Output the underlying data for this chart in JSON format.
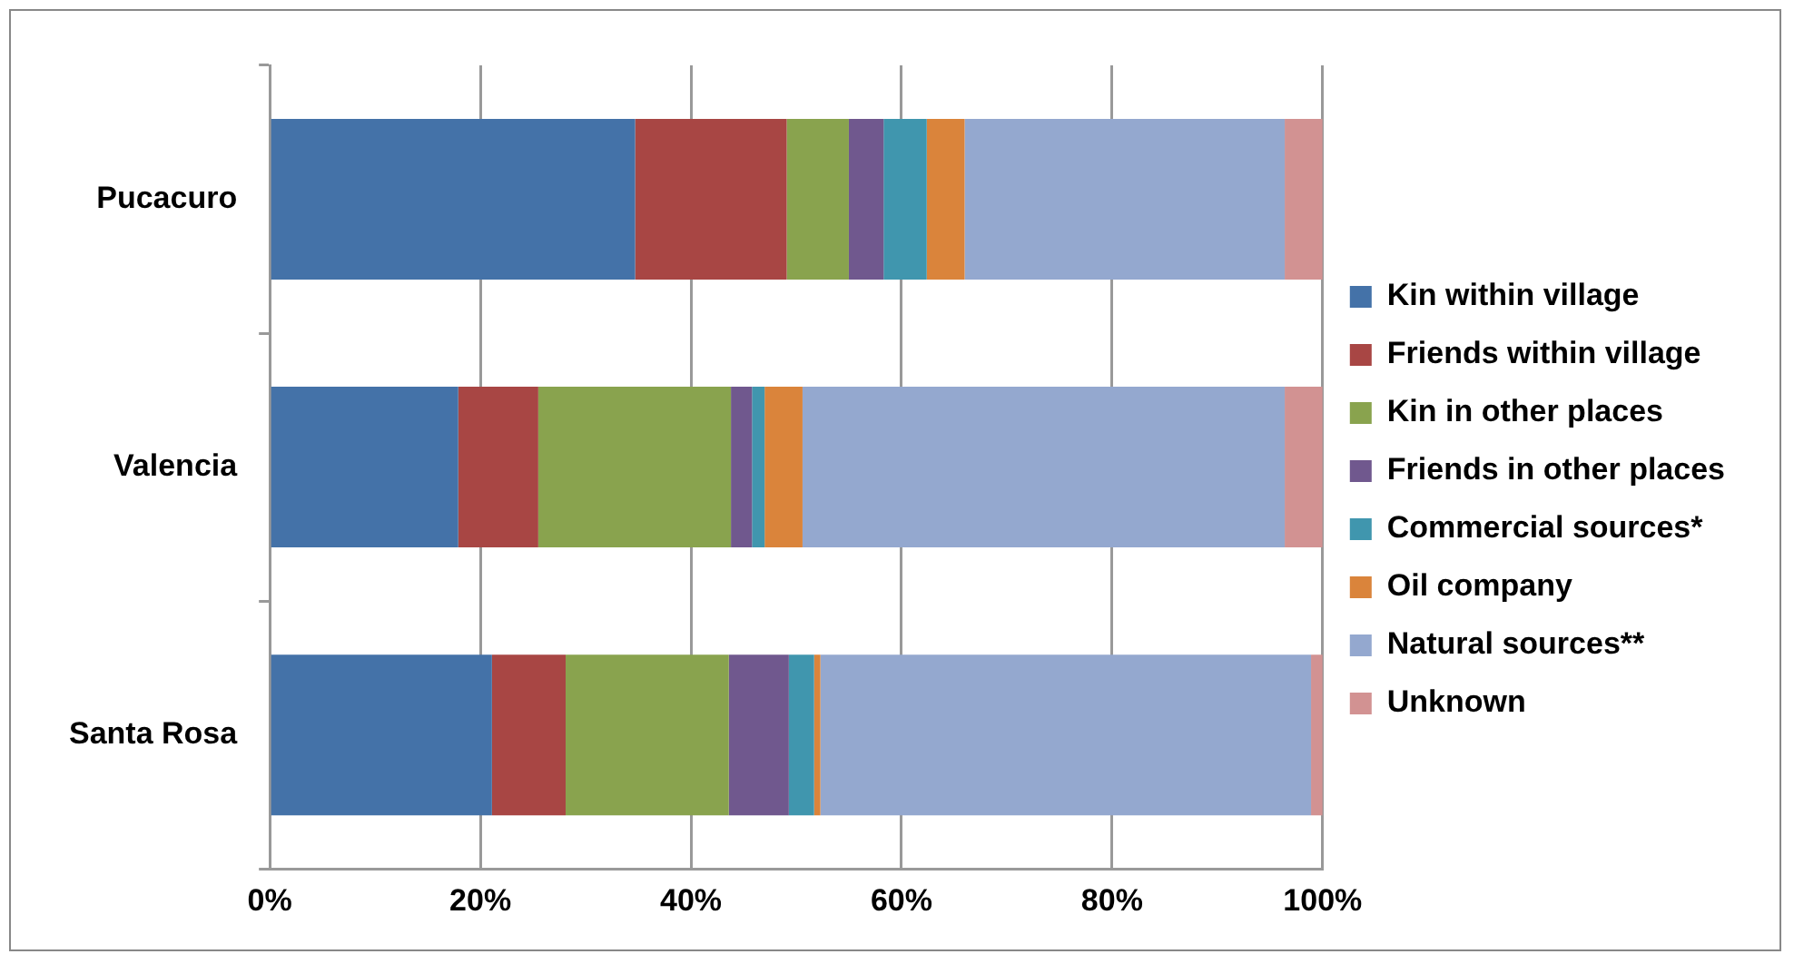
{
  "chart_data": {
    "type": "bar",
    "orientation": "horizontal",
    "stacked": true,
    "categories": [
      "Pucacuro",
      "Valencia",
      "Santa Rosa"
    ],
    "series": [
      {
        "name": "Kin within village",
        "color": "#4472a8",
        "values": [
          34.7,
          17.9,
          21.1
        ]
      },
      {
        "name": "Friends within village",
        "color": "#a84644",
        "values": [
          14.4,
          7.6,
          7.0
        ]
      },
      {
        "name": "Kin in other places",
        "color": "#89a34e",
        "values": [
          5.9,
          18.3,
          15.5
        ]
      },
      {
        "name": "Friends in other places",
        "color": "#70588e",
        "values": [
          3.3,
          2.0,
          5.7
        ]
      },
      {
        "name": "Commercial sources*",
        "color": "#4096ae",
        "values": [
          4.1,
          1.2,
          2.4
        ]
      },
      {
        "name": "Oil company",
        "color": "#da843b",
        "values": [
          3.6,
          3.6,
          0.6
        ]
      },
      {
        "name": "Natural sources**",
        "color": "#94a8cf",
        "values": [
          30.4,
          45.8,
          46.6
        ]
      },
      {
        "name": "Unknown",
        "color": "#d29292",
        "values": [
          3.6,
          3.6,
          1.1
        ]
      }
    ],
    "xlim": [
      0,
      100
    ],
    "xticks": [
      {
        "value": 0,
        "label": "0%"
      },
      {
        "value": 20,
        "label": "20%"
      },
      {
        "value": 40,
        "label": "40%"
      },
      {
        "value": 60,
        "label": "60%"
      },
      {
        "value": 80,
        "label": "80%"
      },
      {
        "value": 100,
        "label": "100%"
      }
    ],
    "grid": "x",
    "legend": "right"
  }
}
